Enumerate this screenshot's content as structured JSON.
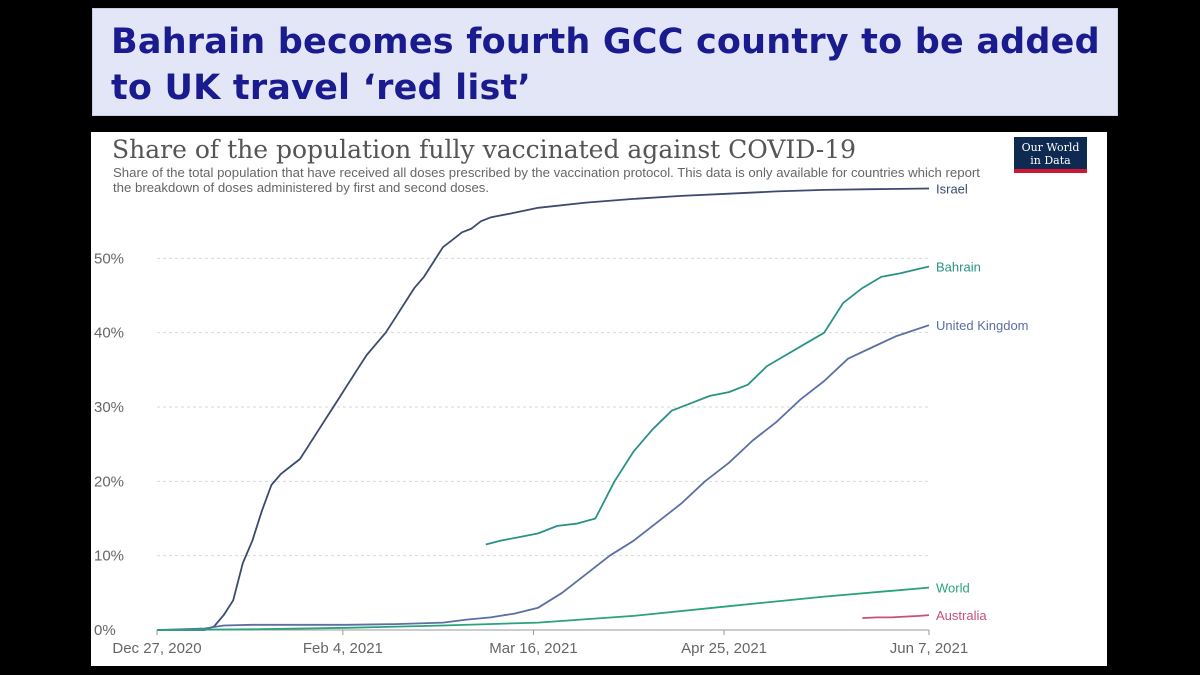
{
  "headline": {
    "text": "Bahrain becomes fourth GCC country to be added to UK travel ‘red list’"
  },
  "logo": {
    "line1": "Our World",
    "line2": "in Data"
  },
  "chart_data": {
    "type": "line",
    "title": "Share of the population fully vaccinated against COVID-19",
    "subtitle": "Share of the total population that have received all doses prescribed by the vaccination protocol. This data is only available for countries which report the breakdown of doses administered by first and second doses.",
    "x_domain_days": [
      0,
      162
    ],
    "ylim": [
      0,
      60
    ],
    "y_ticks": [
      {
        "value": 0,
        "label": "0%"
      },
      {
        "value": 10,
        "label": "10%"
      },
      {
        "value": 20,
        "label": "20%"
      },
      {
        "value": 30,
        "label": "30%"
      },
      {
        "value": 40,
        "label": "40%"
      },
      {
        "value": 50,
        "label": "50%"
      }
    ],
    "x_ticks": [
      {
        "day": 0,
        "label": "Dec 27, 2020"
      },
      {
        "day": 39,
        "label": "Feb 4, 2021"
      },
      {
        "day": 79,
        "label": "Mar 16, 2021"
      },
      {
        "day": 119,
        "label": "Apr 25, 2021"
      },
      {
        "day": 162,
        "label": "Jun 7, 2021"
      }
    ],
    "series": [
      {
        "name": "Israel",
        "color": "#3c4a6e",
        "points": [
          [
            0,
            0
          ],
          [
            10,
            0
          ],
          [
            12,
            0.5
          ],
          [
            14,
            2
          ],
          [
            16,
            4
          ],
          [
            18,
            9
          ],
          [
            20,
            12
          ],
          [
            22,
            16
          ],
          [
            24,
            19.5
          ],
          [
            26,
            21
          ],
          [
            28,
            22
          ],
          [
            30,
            23
          ],
          [
            32,
            25
          ],
          [
            34,
            27
          ],
          [
            36,
            29
          ],
          [
            38,
            31
          ],
          [
            40,
            33
          ],
          [
            42,
            35
          ],
          [
            44,
            37
          ],
          [
            46,
            38.5
          ],
          [
            48,
            40
          ],
          [
            50,
            42
          ],
          [
            52,
            44
          ],
          [
            54,
            46
          ],
          [
            56,
            47.5
          ],
          [
            58,
            49.5
          ],
          [
            60,
            51.5
          ],
          [
            62,
            52.5
          ],
          [
            64,
            53.5
          ],
          [
            66,
            54
          ],
          [
            68,
            55
          ],
          [
            70,
            55.5
          ],
          [
            74,
            56
          ],
          [
            80,
            56.8
          ],
          [
            90,
            57.5
          ],
          [
            100,
            58
          ],
          [
            110,
            58.4
          ],
          [
            120,
            58.7
          ],
          [
            130,
            59
          ],
          [
            140,
            59.2
          ],
          [
            150,
            59.3
          ],
          [
            162,
            59.4
          ]
        ]
      },
      {
        "name": "Bahrain",
        "color": "#2a9385",
        "points": [
          [
            69,
            11.5
          ],
          [
            72,
            12
          ],
          [
            76,
            12.5
          ],
          [
            80,
            13
          ],
          [
            84,
            14
          ],
          [
            88,
            14.3
          ],
          [
            92,
            15
          ],
          [
            96,
            20
          ],
          [
            100,
            24
          ],
          [
            104,
            27
          ],
          [
            108,
            29.5
          ],
          [
            112,
            30.5
          ],
          [
            116,
            31.5
          ],
          [
            120,
            32
          ],
          [
            124,
            33
          ],
          [
            128,
            35.5
          ],
          [
            132,
            37
          ],
          [
            136,
            38.5
          ],
          [
            140,
            40
          ],
          [
            144,
            44
          ],
          [
            148,
            46
          ],
          [
            152,
            47.5
          ],
          [
            156,
            48
          ],
          [
            162,
            48.9
          ]
        ]
      },
      {
        "name": "United Kingdom",
        "color": "#5a6fa3",
        "points": [
          [
            0,
            0
          ],
          [
            10,
            0.2
          ],
          [
            14,
            0.6
          ],
          [
            20,
            0.7
          ],
          [
            40,
            0.7
          ],
          [
            50,
            0.8
          ],
          [
            60,
            1
          ],
          [
            65,
            1.4
          ],
          [
            70,
            1.7
          ],
          [
            75,
            2.2
          ],
          [
            80,
            3
          ],
          [
            85,
            5
          ],
          [
            90,
            7.5
          ],
          [
            95,
            10
          ],
          [
            100,
            12
          ],
          [
            105,
            14.5
          ],
          [
            110,
            17
          ],
          [
            115,
            20
          ],
          [
            120,
            22.5
          ],
          [
            125,
            25.5
          ],
          [
            130,
            28
          ],
          [
            135,
            31
          ],
          [
            140,
            33.5
          ],
          [
            145,
            36.5
          ],
          [
            150,
            38
          ],
          [
            155,
            39.5
          ],
          [
            162,
            41
          ]
        ]
      },
      {
        "name": "World",
        "color": "#2aa27c",
        "points": [
          [
            0,
            0
          ],
          [
            20,
            0.1
          ],
          [
            40,
            0.3
          ],
          [
            60,
            0.6
          ],
          [
            80,
            1
          ],
          [
            100,
            1.9
          ],
          [
            120,
            3.2
          ],
          [
            140,
            4.5
          ],
          [
            162,
            5.7
          ]
        ]
      },
      {
        "name": "Australia",
        "color": "#c85175",
        "points": [
          [
            148,
            1.6
          ],
          [
            151,
            1.7
          ],
          [
            154,
            1.7
          ],
          [
            157,
            1.8
          ],
          [
            160,
            1.9
          ],
          [
            162,
            2.0
          ]
        ]
      }
    ]
  }
}
